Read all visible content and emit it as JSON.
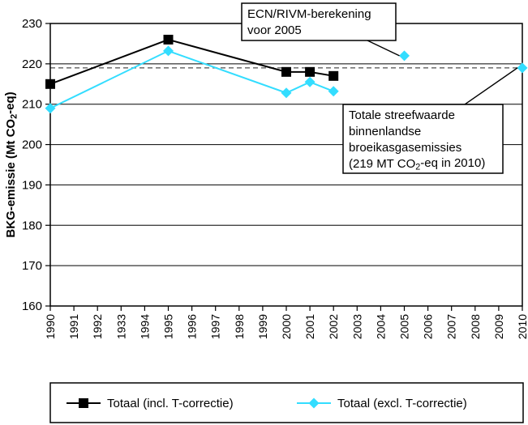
{
  "chart_data": {
    "type": "line",
    "ylabel": "BKG-emissie (Mt CO₂-eq)",
    "ylim": [
      160,
      230
    ],
    "yticks": [
      160,
      170,
      180,
      190,
      200,
      210,
      220,
      230
    ],
    "x_tick_labels": [
      "1990",
      "1991",
      "1992",
      "1933",
      "1994",
      "1995",
      "1996",
      "1997",
      "1998",
      "1999",
      "2000",
      "2001",
      "2002",
      "2003",
      "2004",
      "2005",
      "2006",
      "2007",
      "2008",
      "2009",
      "2010"
    ],
    "grid": "horizontal",
    "series": [
      {
        "name": "Totaal (incl. T-correctie)",
        "color": "#000000",
        "marker": "square",
        "points": [
          [
            1990,
            215
          ],
          [
            1995,
            226
          ],
          [
            2000,
            218
          ],
          [
            2001,
            218
          ],
          [
            2002,
            217
          ]
        ]
      },
      {
        "name": "Totaal (excl. T-correctie)",
        "color": "#33ddff",
        "marker": "diamond",
        "points": [
          [
            1990,
            209
          ],
          [
            1995,
            223.2
          ],
          [
            2000,
            212.8
          ],
          [
            2001,
            215.5
          ],
          [
            2002,
            213.2
          ]
        ]
      }
    ],
    "extra_points": [
      {
        "x": 2005,
        "y": 222,
        "color": "#33ddff",
        "marker": "diamond"
      },
      {
        "x": 2010,
        "y": 219,
        "color": "#33ddff",
        "marker": "diamond"
      }
    ],
    "target_line": {
      "y": 219,
      "style": "dashed"
    },
    "annotations": [
      {
        "lines": [
          "ECN/RIVM-berekening",
          "voor 2005"
        ],
        "target": [
          2005,
          222
        ]
      },
      {
        "lines": [
          "Totale streefwaarde",
          "binnenlandse",
          "broeikasgasemissies",
          "(219 MT CO₂-eq in 2010)"
        ],
        "target": [
          2010,
          219
        ]
      }
    ],
    "legend": {
      "position": "bottom",
      "entries": [
        "Totaal (incl. T-correctie)",
        "Totaal (excl. T-correctie)"
      ]
    }
  }
}
